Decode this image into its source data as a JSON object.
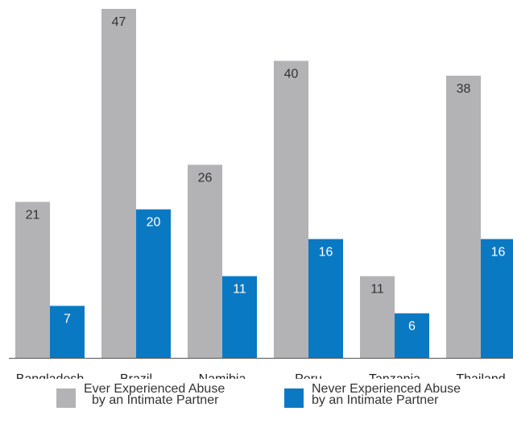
{
  "colors": {
    "ever": "#b3b3b5",
    "never": "#0a79c4",
    "axis": "#555555"
  },
  "legend": {
    "ever_line1": "Ever Experienced Abuse",
    "ever_line2": "by an Intimate Partner",
    "never_line1": "Never Experienced Abuse",
    "never_line2": "by an Intimate Partner"
  },
  "chart_data": {
    "type": "bar",
    "title": "",
    "xlabel": "",
    "ylabel": "",
    "categories": [
      "Bangladesh",
      "Brazil",
      "Namibia",
      "Peru",
      "Tanzania",
      "Thailand"
    ],
    "series": [
      {
        "name": "Ever Experienced Abuse by an Intimate Partner",
        "values": [
          21,
          47,
          26,
          40,
          11,
          38
        ],
        "color": "#b3b3b5"
      },
      {
        "name": "Never Experienced Abuse by an Intimate Partner",
        "values": [
          7,
          20,
          11,
          16,
          6,
          16
        ],
        "color": "#0a79c4"
      }
    ],
    "ylim": [
      0,
      47
    ],
    "grid": false,
    "legend_position": "bottom",
    "data_labels": true
  }
}
